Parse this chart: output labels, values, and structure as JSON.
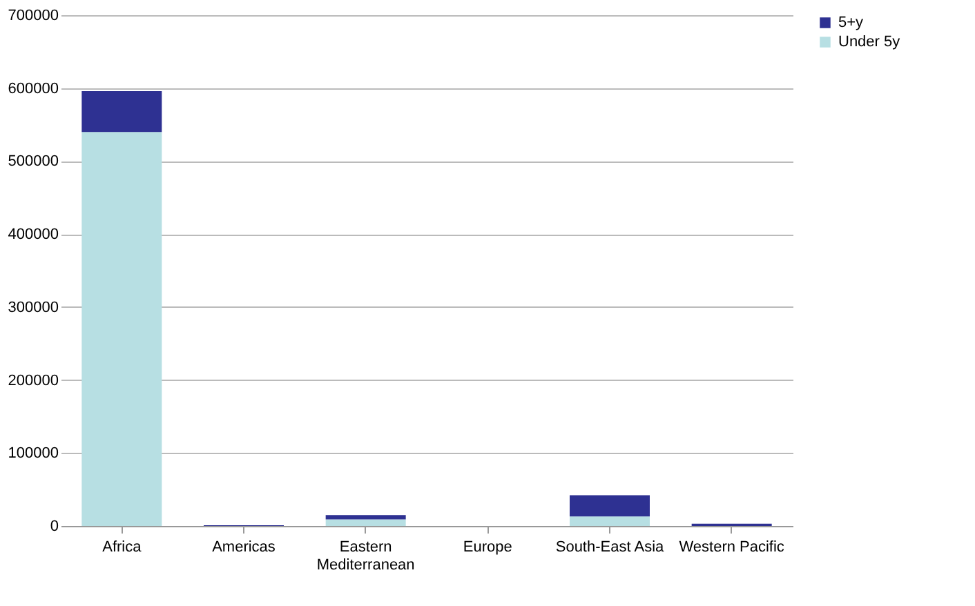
{
  "chart_data": {
    "type": "bar",
    "stacked": true,
    "categories": [
      "Africa",
      "Americas",
      "Eastern Mediterranean",
      "Europe",
      "South-East Asia",
      "Western Pacific"
    ],
    "series": [
      {
        "name": "Under 5y",
        "color": "#b7dfe3",
        "values": [
          540000,
          0,
          9000,
          0,
          13000,
          0
        ]
      },
      {
        "name": "5+y",
        "color": "#2e3192",
        "values": [
          56000,
          1000,
          6000,
          0,
          29000,
          3000
        ]
      }
    ],
    "ylim": [
      0,
      700000
    ],
    "yticks": [
      0,
      100000,
      200000,
      300000,
      400000,
      500000,
      600000,
      700000
    ],
    "grid": "y",
    "legend": "right"
  }
}
